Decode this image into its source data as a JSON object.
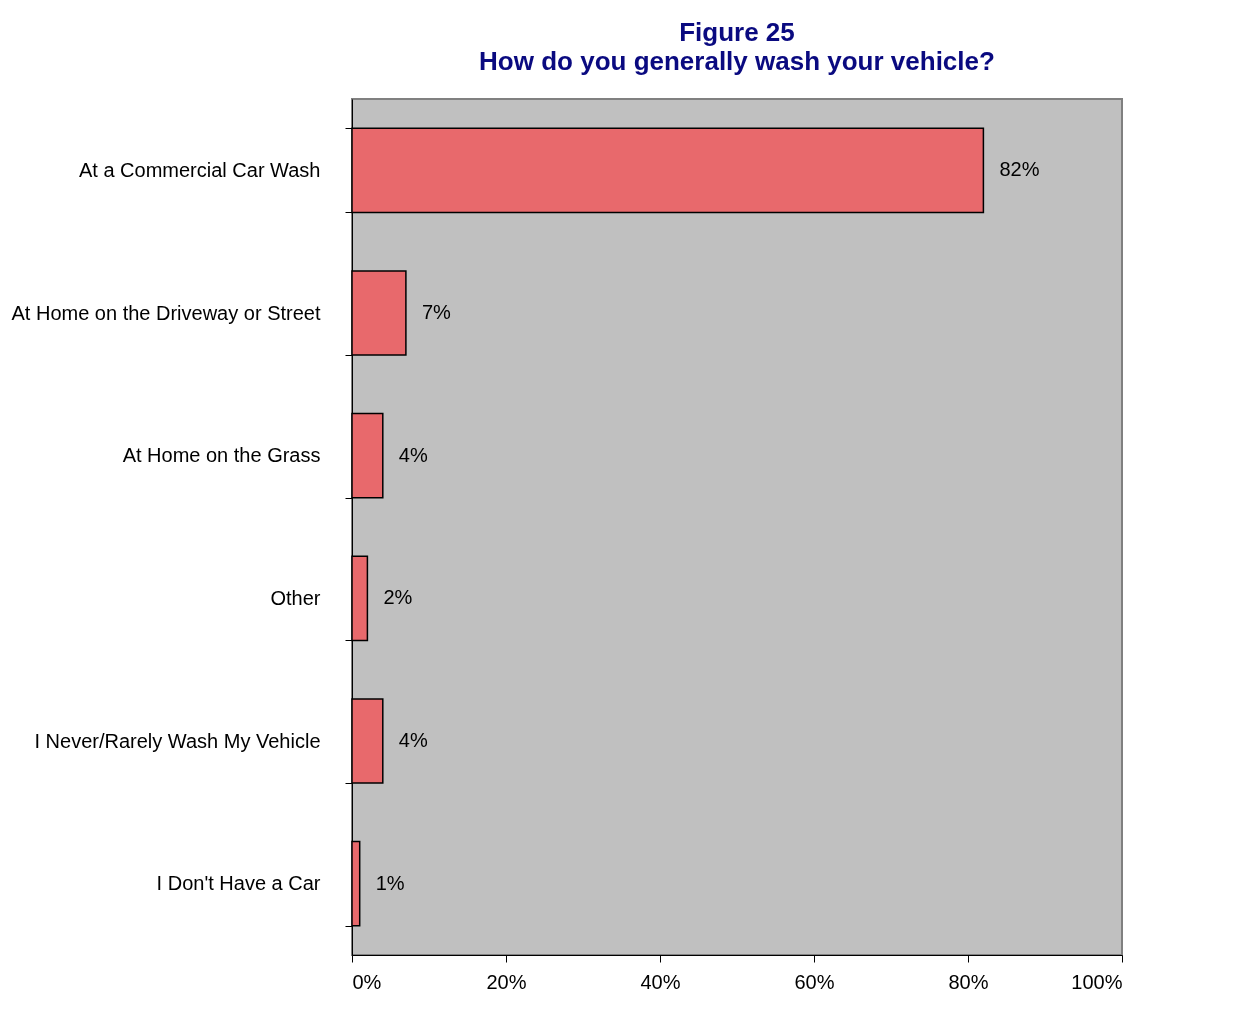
{
  "chart_data": {
    "type": "bar",
    "orientation": "horizontal",
    "title": "Figure 25",
    "subtitle": "How do you generally wash your vehicle?",
    "categories": [
      "At a Commercial Car Wash",
      "At Home on the Driveway or Street",
      "At Home on the Grass",
      "Other",
      "I Never/Rarely Wash My Vehicle",
      "I Don't Have a Car"
    ],
    "values": [
      82,
      7,
      4,
      2,
      4,
      1
    ],
    "value_labels": [
      "82%",
      "7%",
      "4%",
      "2%",
      "4%",
      "1%"
    ],
    "color": "#e8696c",
    "xlim": [
      0,
      100
    ],
    "xticks": [
      {
        "value": 0,
        "label": "0%"
      },
      {
        "value": 20,
        "label": "20%"
      },
      {
        "value": 40,
        "label": "40%"
      },
      {
        "value": 60,
        "label": "60%"
      },
      {
        "value": 80,
        "label": "80%"
      },
      {
        "value": 100,
        "label": "100%"
      }
    ],
    "grid": false
  }
}
